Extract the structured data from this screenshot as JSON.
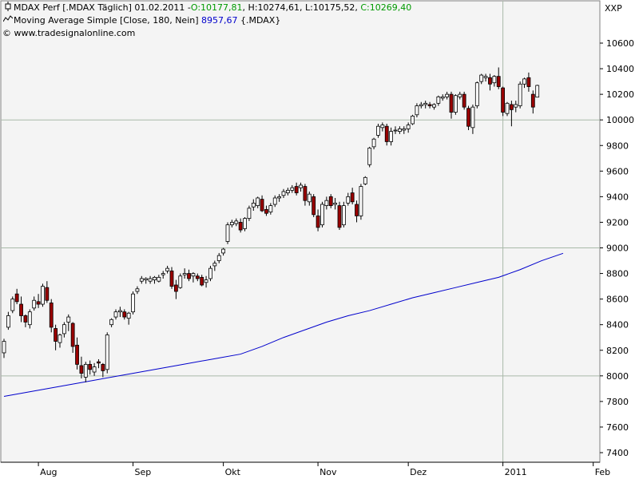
{
  "header": {
    "row1_prefix": "MDAX Perf [.MDAX  Täglich] 01.02.2011 -",
    "row1_open": "O:10177,81",
    "row1_high": "H:10274,61",
    "row1_low": "L:10175,52",
    "row1_close": "C:10269,40",
    "row2_prefix": "Moving Average Simple [Close, 180, Nein]",
    "row2_value": "8957,67",
    "row2_suffix": "{.MDAX}",
    "row3": "© www.tradesignalonline.com",
    "exchange": "XXP",
    "candle_icon": "candlestick-icon",
    "ma_icon": "line-wave-icon"
  },
  "colors": {
    "background": "#ffffff",
    "plot_background": "#f4f4f4",
    "grid": "#a9b9a9",
    "ma_line": "#0000cc",
    "bear_candle": "#9a0000",
    "bull_candle": "#ffffff",
    "ohlc_text": "#009a00"
  },
  "chart_data": {
    "type": "candlestick",
    "instrument": "MDAX Perf",
    "ylim": [
      7300,
      10800
    ],
    "y_ticks": [
      7400,
      7600,
      7800,
      8000,
      8200,
      8400,
      8600,
      8800,
      9000,
      9200,
      9400,
      9600,
      9800,
      10000,
      10200,
      10400,
      10600
    ],
    "y_tick_labels": [
      "7400",
      "7600",
      "7800",
      "8000",
      "8200",
      "8400",
      "8600",
      "8800",
      "9000",
      "9200",
      "9400",
      "9600",
      "9800",
      "10000",
      "10200",
      "10400",
      "10600"
    ],
    "horizontal_grid": [
      8000,
      9000,
      10000
    ],
    "x_day_range": [
      0,
      130
    ],
    "x_ticks": [
      {
        "label": "Aug",
        "day": 8
      },
      {
        "label": "Sep",
        "day": 30
      },
      {
        "label": "Okt",
        "day": 51
      },
      {
        "label": "Nov",
        "day": 73
      },
      {
        "label": "Dez",
        "day": 94
      },
      {
        "label": "2011",
        "day": 116
      },
      {
        "label": "Feb",
        "day": 137
      }
    ],
    "vertical_grid_day": 116,
    "candles": [
      {
        "o": 8180,
        "h": 8290,
        "l": 8140,
        "c": 8270
      },
      {
        "o": 8380,
        "h": 8500,
        "l": 8360,
        "c": 8470
      },
      {
        "o": 8510,
        "h": 8620,
        "l": 8490,
        "c": 8600
      },
      {
        "o": 8640,
        "h": 8680,
        "l": 8560,
        "c": 8580
      },
      {
        "o": 8560,
        "h": 8620,
        "l": 8420,
        "c": 8470
      },
      {
        "o": 8470,
        "h": 8480,
        "l": 8380,
        "c": 8420
      },
      {
        "o": 8400,
        "h": 8520,
        "l": 8370,
        "c": 8500
      },
      {
        "o": 8530,
        "h": 8620,
        "l": 8510,
        "c": 8590
      },
      {
        "o": 8580,
        "h": 8640,
        "l": 8530,
        "c": 8560
      },
      {
        "o": 8560,
        "h": 8720,
        "l": 8540,
        "c": 8700
      },
      {
        "o": 8690,
        "h": 8740,
        "l": 8570,
        "c": 8590
      },
      {
        "o": 8570,
        "h": 8600,
        "l": 8340,
        "c": 8380
      },
      {
        "o": 8370,
        "h": 8400,
        "l": 8200,
        "c": 8270
      },
      {
        "o": 8260,
        "h": 8330,
        "l": 8220,
        "c": 8320
      },
      {
        "o": 8330,
        "h": 8420,
        "l": 8300,
        "c": 8400
      },
      {
        "o": 8420,
        "h": 8480,
        "l": 8350,
        "c": 8460
      },
      {
        "o": 8410,
        "h": 8420,
        "l": 8180,
        "c": 8230
      },
      {
        "o": 8240,
        "h": 8300,
        "l": 8050,
        "c": 8090
      },
      {
        "o": 8080,
        "h": 8150,
        "l": 7980,
        "c": 8020
      },
      {
        "o": 7990,
        "h": 8110,
        "l": 7950,
        "c": 8090
      },
      {
        "o": 8090,
        "h": 8120,
        "l": 8010,
        "c": 8050
      },
      {
        "o": 8030,
        "h": 8100,
        "l": 8000,
        "c": 8070
      },
      {
        "o": 8110,
        "h": 8130,
        "l": 8060,
        "c": 8100
      },
      {
        "o": 8090,
        "h": 8100,
        "l": 7990,
        "c": 8040
      },
      {
        "o": 8050,
        "h": 8340,
        "l": 8020,
        "c": 8320
      },
      {
        "o": 8400,
        "h": 8450,
        "l": 8380,
        "c": 8440
      },
      {
        "o": 8460,
        "h": 8520,
        "l": 8440,
        "c": 8500
      },
      {
        "o": 8500,
        "h": 8540,
        "l": 8460,
        "c": 8510
      },
      {
        "o": 8500,
        "h": 8520,
        "l": 8440,
        "c": 8460
      },
      {
        "o": 8450,
        "h": 8500,
        "l": 8400,
        "c": 8490
      },
      {
        "o": 8500,
        "h": 8660,
        "l": 8480,
        "c": 8640
      },
      {
        "o": 8660,
        "h": 8700,
        "l": 8640,
        "c": 8680
      },
      {
        "o": 8740,
        "h": 8780,
        "l": 8720,
        "c": 8760
      },
      {
        "o": 8750,
        "h": 8770,
        "l": 8720,
        "c": 8760
      },
      {
        "o": 8740,
        "h": 8780,
        "l": 8720,
        "c": 8760
      },
      {
        "o": 8750,
        "h": 8780,
        "l": 8720,
        "c": 8770
      },
      {
        "o": 8740,
        "h": 8790,
        "l": 8730,
        "c": 8770
      },
      {
        "o": 8790,
        "h": 8820,
        "l": 8760,
        "c": 8800
      },
      {
        "o": 8820,
        "h": 8860,
        "l": 8800,
        "c": 8840
      },
      {
        "o": 8820,
        "h": 8850,
        "l": 8680,
        "c": 8700
      },
      {
        "o": 8710,
        "h": 8750,
        "l": 8600,
        "c": 8660
      },
      {
        "o": 8690,
        "h": 8800,
        "l": 8680,
        "c": 8780
      },
      {
        "o": 8790,
        "h": 8840,
        "l": 8760,
        "c": 8800
      },
      {
        "o": 8800,
        "h": 8830,
        "l": 8740,
        "c": 8760
      },
      {
        "o": 8780,
        "h": 8810,
        "l": 8730,
        "c": 8800
      },
      {
        "o": 8780,
        "h": 8800,
        "l": 8740,
        "c": 8760
      },
      {
        "o": 8770,
        "h": 8790,
        "l": 8700,
        "c": 8710
      },
      {
        "o": 8730,
        "h": 8780,
        "l": 8690,
        "c": 8750
      },
      {
        "o": 8760,
        "h": 8860,
        "l": 8740,
        "c": 8840
      },
      {
        "o": 8860,
        "h": 8900,
        "l": 8820,
        "c": 8880
      },
      {
        "o": 8900,
        "h": 8960,
        "l": 8880,
        "c": 8940
      },
      {
        "o": 8960,
        "h": 9000,
        "l": 8940,
        "c": 8990
      },
      {
        "o": 9050,
        "h": 9200,
        "l": 9030,
        "c": 9180
      },
      {
        "o": 9180,
        "h": 9220,
        "l": 9160,
        "c": 9200
      },
      {
        "o": 9190,
        "h": 9230,
        "l": 9170,
        "c": 9210
      },
      {
        "o": 9200,
        "h": 9230,
        "l": 9120,
        "c": 9140
      },
      {
        "o": 9150,
        "h": 9240,
        "l": 9130,
        "c": 9230
      },
      {
        "o": 9230,
        "h": 9330,
        "l": 9210,
        "c": 9310
      },
      {
        "o": 9320,
        "h": 9380,
        "l": 9290,
        "c": 9350
      },
      {
        "o": 9330,
        "h": 9400,
        "l": 9310,
        "c": 9390
      },
      {
        "o": 9380,
        "h": 9410,
        "l": 9280,
        "c": 9290
      },
      {
        "o": 9300,
        "h": 9330,
        "l": 9250,
        "c": 9270
      },
      {
        "o": 9280,
        "h": 9350,
        "l": 9260,
        "c": 9330
      },
      {
        "o": 9340,
        "h": 9410,
        "l": 9320,
        "c": 9390
      },
      {
        "o": 9390,
        "h": 9420,
        "l": 9360,
        "c": 9400
      },
      {
        "o": 9410,
        "h": 9460,
        "l": 9390,
        "c": 9440
      },
      {
        "o": 9430,
        "h": 9470,
        "l": 9410,
        "c": 9450
      },
      {
        "o": 9450,
        "h": 9490,
        "l": 9430,
        "c": 9470
      },
      {
        "o": 9480,
        "h": 9510,
        "l": 9410,
        "c": 9430
      },
      {
        "o": 9470,
        "h": 9510,
        "l": 9440,
        "c": 9490
      },
      {
        "o": 9480,
        "h": 9500,
        "l": 9330,
        "c": 9370
      },
      {
        "o": 9360,
        "h": 9440,
        "l": 9330,
        "c": 9420
      },
      {
        "o": 9400,
        "h": 9420,
        "l": 9240,
        "c": 9260
      },
      {
        "o": 9250,
        "h": 9300,
        "l": 9130,
        "c": 9160
      },
      {
        "o": 9180,
        "h": 9360,
        "l": 9160,
        "c": 9340
      },
      {
        "o": 9330,
        "h": 9400,
        "l": 9300,
        "c": 9370
      },
      {
        "o": 9400,
        "h": 9420,
        "l": 9310,
        "c": 9330
      },
      {
        "o": 9340,
        "h": 9390,
        "l": 9300,
        "c": 9350
      },
      {
        "o": 9330,
        "h": 9360,
        "l": 9140,
        "c": 9160
      },
      {
        "o": 9180,
        "h": 9360,
        "l": 9160,
        "c": 9330
      },
      {
        "o": 9350,
        "h": 9430,
        "l": 9330,
        "c": 9400
      },
      {
        "o": 9430,
        "h": 9470,
        "l": 9340,
        "c": 9360
      },
      {
        "o": 9340,
        "h": 9370,
        "l": 9200,
        "c": 9250
      },
      {
        "o": 9250,
        "h": 9500,
        "l": 9220,
        "c": 9480
      },
      {
        "o": 9500,
        "h": 9560,
        "l": 9490,
        "c": 9550
      },
      {
        "o": 9650,
        "h": 9790,
        "l": 9630,
        "c": 9780
      },
      {
        "o": 9790,
        "h": 9860,
        "l": 9770,
        "c": 9850
      },
      {
        "o": 9880,
        "h": 9970,
        "l": 9860,
        "c": 9950
      },
      {
        "o": 9940,
        "h": 9980,
        "l": 9910,
        "c": 9960
      },
      {
        "o": 9950,
        "h": 9970,
        "l": 9800,
        "c": 9830
      },
      {
        "o": 9830,
        "h": 9940,
        "l": 9800,
        "c": 9910
      },
      {
        "o": 9920,
        "h": 9950,
        "l": 9890,
        "c": 9920
      },
      {
        "o": 9910,
        "h": 9950,
        "l": 9890,
        "c": 9930
      },
      {
        "o": 9920,
        "h": 9950,
        "l": 9890,
        "c": 9930
      },
      {
        "o": 9930,
        "h": 9980,
        "l": 9900,
        "c": 9960
      },
      {
        "o": 9970,
        "h": 10040,
        "l": 9960,
        "c": 10030
      },
      {
        "o": 10040,
        "h": 10130,
        "l": 10020,
        "c": 10110
      },
      {
        "o": 10110,
        "h": 10140,
        "l": 10090,
        "c": 10120
      },
      {
        "o": 10120,
        "h": 10150,
        "l": 10090,
        "c": 10130
      },
      {
        "o": 10120,
        "h": 10140,
        "l": 10090,
        "c": 10110
      },
      {
        "o": 10100,
        "h": 10130,
        "l": 10080,
        "c": 10120
      },
      {
        "o": 10130,
        "h": 10190,
        "l": 10110,
        "c": 10180
      },
      {
        "o": 10170,
        "h": 10200,
        "l": 10150,
        "c": 10180
      },
      {
        "o": 10180,
        "h": 10220,
        "l": 10160,
        "c": 10200
      },
      {
        "o": 10200,
        "h": 10220,
        "l": 10010,
        "c": 10060
      },
      {
        "o": 10060,
        "h": 10200,
        "l": 10040,
        "c": 10190
      },
      {
        "o": 10180,
        "h": 10220,
        "l": 10160,
        "c": 10200
      },
      {
        "o": 10200,
        "h": 10220,
        "l": 10080,
        "c": 10100
      },
      {
        "o": 10090,
        "h": 10110,
        "l": 9920,
        "c": 9950
      },
      {
        "o": 9940,
        "h": 10120,
        "l": 9890,
        "c": 10100
      },
      {
        "o": 10110,
        "h": 10300,
        "l": 10090,
        "c": 10290
      },
      {
        "o": 10300,
        "h": 10360,
        "l": 10280,
        "c": 10350
      },
      {
        "o": 10330,
        "h": 10360,
        "l": 10300,
        "c": 10340
      },
      {
        "o": 10330,
        "h": 10360,
        "l": 10230,
        "c": 10280
      },
      {
        "o": 10290,
        "h": 10350,
        "l": 10260,
        "c": 10340
      },
      {
        "o": 10340,
        "h": 10410,
        "l": 10240,
        "c": 10260
      },
      {
        "o": 10250,
        "h": 10260,
        "l": 10030,
        "c": 10060
      },
      {
        "o": 10050,
        "h": 10140,
        "l": 10030,
        "c": 10130
      },
      {
        "o": 10120,
        "h": 10150,
        "l": 9950,
        "c": 10080
      },
      {
        "o": 10100,
        "h": 10150,
        "l": 10060,
        "c": 10120
      },
      {
        "o": 10110,
        "h": 10300,
        "l": 10090,
        "c": 10280
      },
      {
        "o": 10280,
        "h": 10330,
        "l": 10250,
        "c": 10320
      },
      {
        "o": 10330,
        "h": 10370,
        "l": 10220,
        "c": 10260
      },
      {
        "o": 10200,
        "h": 10230,
        "l": 10050,
        "c": 10100
      },
      {
        "o": 10177.81,
        "h": 10274.61,
        "l": 10175.52,
        "c": 10269.4
      }
    ],
    "moving_average": {
      "name": "Moving Average Simple [Close, 180, Nein]",
      "points": [
        [
          0,
          7840
        ],
        [
          10,
          7900
        ],
        [
          20,
          7960
        ],
        [
          30,
          8020
        ],
        [
          40,
          8080
        ],
        [
          50,
          8140
        ],
        [
          55,
          8170
        ],
        [
          60,
          8230
        ],
        [
          65,
          8300
        ],
        [
          70,
          8360
        ],
        [
          75,
          8420
        ],
        [
          80,
          8470
        ],
        [
          85,
          8510
        ],
        [
          90,
          8560
        ],
        [
          95,
          8610
        ],
        [
          100,
          8650
        ],
        [
          105,
          8690
        ],
        [
          110,
          8730
        ],
        [
          115,
          8770
        ],
        [
          120,
          8830
        ],
        [
          125,
          8900
        ],
        [
          130,
          8957.67
        ]
      ]
    }
  }
}
